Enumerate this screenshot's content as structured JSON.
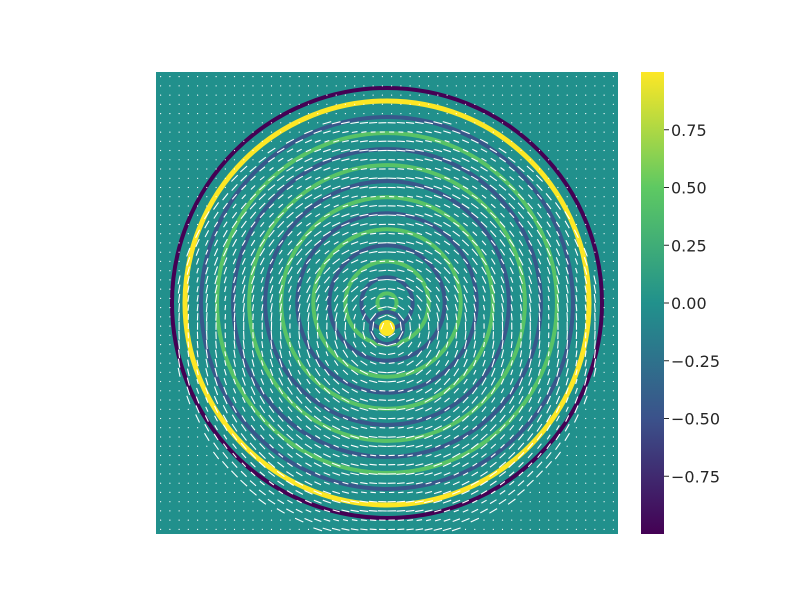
{
  "chart_data": {
    "type": "heatmap",
    "title": "",
    "xlabel": "",
    "ylabel": "",
    "axes_visible": false,
    "grid": false,
    "colormap": "viridis",
    "field": {
      "description_of_pattern": "concentric oscillating rings inside a circular domain with a white quiver (arrow) overlay showing a circulating vector field; outside the circle the value is 0",
      "domain": "disk",
      "outside_value": 0.0,
      "ring_count": 12,
      "center_value": 1.0,
      "boundary_ring_values": [
        1.0,
        -1.0
      ]
    },
    "quiver": {
      "color": "#ffffff",
      "pattern": "circulating"
    },
    "colorbar": {
      "range": [
        -1.0,
        1.0
      ],
      "ticks": [
        0.75,
        0.5,
        0.25,
        0.0,
        -0.25,
        -0.5,
        -0.75
      ],
      "tick_labels": [
        "0.75",
        "0.50",
        "0.25",
        "0.00",
        "−0.25",
        "−0.50",
        "−0.75"
      ],
      "colors": [
        "#440154",
        "#3b528b",
        "#21918c",
        "#5ec962",
        "#fde725"
      ]
    }
  }
}
